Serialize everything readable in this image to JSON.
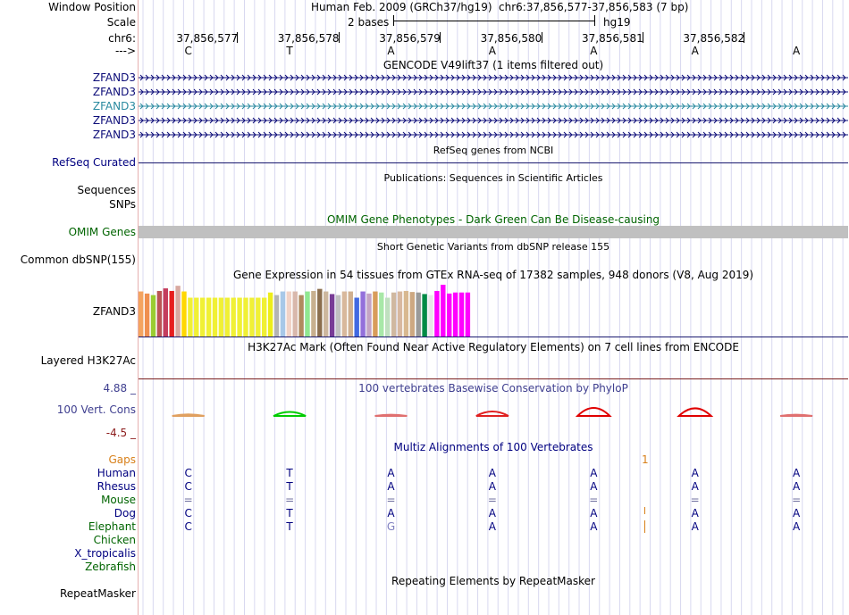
{
  "header": {
    "window_position_label": "Window Position",
    "scale_label": "Scale",
    "chrom_label": "chr6:",
    "strand_label": "--->",
    "assembly_title": "Human Feb. 2009 (GRCh37/hg19)",
    "position": "chr6:37,856,577-37,856,583 (7 bp)",
    "scale_value": "2 bases",
    "scale_db": "hg19",
    "coords": [
      "37,856,577",
      "37,856,578",
      "37,856,579",
      "37,856,580",
      "37,856,581",
      "37,856,582"
    ],
    "bases": [
      "C",
      "T",
      "A",
      "A",
      "A",
      "A",
      "A"
    ]
  },
  "tracks": {
    "gencode": {
      "title": "GENCODE V49lift37 (1 items filtered out)",
      "genes": [
        "ZFAND3",
        "ZFAND3",
        "ZFAND3",
        "ZFAND3",
        "ZFAND3"
      ]
    },
    "refseq": {
      "title": "RefSeq genes from NCBI",
      "label": "RefSeq Curated"
    },
    "publications": {
      "title": "Publications: Sequences in Scientific Articles",
      "label": "Sequences"
    },
    "snps_label": "SNPs",
    "omim": {
      "title": "OMIM Gene Phenotypes - Dark Green Can Be Disease-causing",
      "label": "OMIM Genes"
    },
    "dbsnp": {
      "title": "Short Genetic Variants from dbSNP release 155",
      "label": "Common dbSNP(155)"
    },
    "gtex": {
      "title": "Gene Expression in 54 tissues from GTEx RNA-seq of 17382 samples, 948 donors (V8, Aug 2019)",
      "label": "ZFAND3",
      "bars": [
        0.87,
        0.83,
        0.8,
        0.88,
        0.93,
        0.88,
        0.98,
        0.87,
        0.75,
        0.75,
        0.75,
        0.75,
        0.75,
        0.75,
        0.75,
        0.75,
        0.75,
        0.75,
        0.75,
        0.75,
        0.75,
        0.85,
        0.8,
        0.87,
        0.87,
        0.87,
        0.8,
        0.87,
        0.88,
        0.92,
        0.87,
        0.82,
        0.8,
        0.87,
        0.87,
        0.75,
        0.87,
        0.83,
        0.87,
        0.85,
        0.75,
        0.85,
        0.87,
        0.88,
        0.86,
        0.85,
        0.82,
        0.8,
        0.88,
        1.0,
        0.83,
        0.85,
        0.85,
        0.85
      ],
      "colors": [
        "#f4a460",
        "#ef8f4f",
        "#9acd32",
        "#ba5555",
        "#c43e5e",
        "#e61e1e",
        "#d8a8a0",
        "#ffd700",
        "#f0f035",
        "#f0f035",
        "#f0f035",
        "#f0f035",
        "#f0f035",
        "#f0f035",
        "#f0f035",
        "#f0f035",
        "#f0f035",
        "#f0f035",
        "#f0f035",
        "#f0f035",
        "#f0f035",
        "#eded1a",
        "#b4b4b4",
        "#a8c8e8",
        "#f2d3c7",
        "#d9b8ac",
        "#b08a5e",
        "#90e890",
        "#c8b08f",
        "#8b6e4e",
        "#cdb79e",
        "#783c96",
        "#c0c0c0",
        "#d8b89c",
        "#d0b090",
        "#4169e1",
        "#9370db",
        "#c4a4c4",
        "#d89c5a",
        "#a8e8a8",
        "#c0e0c0",
        "#d0b8a0",
        "#d8b8a0",
        "#d8b890",
        "#cda882",
        "#9a9a9a",
        "#008b45",
        "#e8e8e8",
        "#ff00ff",
        "#ff00ff",
        "#ff00ff",
        "#ff00ff",
        "#ff00ff",
        "#ff00ff"
      ]
    },
    "h3k27ac": {
      "title": "H3K27Ac Mark (Often Found Near Active Regulatory Elements) on 7 cell lines from ENCODE",
      "label": "Layered H3K27Ac"
    },
    "phylop": {
      "title": "100 vertebrates Basewise Conservation by PhyloP",
      "label": "100 Vert. Cons",
      "max_label": "4.88 _",
      "min_label": "-4.5 _",
      "scores": [
        0.2,
        0.5,
        0.15,
        0.55,
        1.0,
        0.95,
        0.15
      ],
      "colors": [
        "#e0a060",
        "#00cc00",
        "#e07070",
        "#e02020",
        "#e00000",
        "#e00000",
        "#e07070"
      ]
    },
    "multiz": {
      "title": "Multiz Alignments of 100 Vertebrates",
      "gaps_label": "Gaps",
      "gap_count": "1",
      "species": [
        {
          "name": "Human",
          "bases": [
            "C",
            "T",
            "A",
            "A",
            "A",
            "A",
            "A"
          ]
        },
        {
          "name": "Rhesus",
          "bases": [
            "C",
            "T",
            "A",
            "A",
            "A",
            "A",
            "A"
          ]
        },
        {
          "name": "Mouse",
          "bases": [
            "=",
            "=",
            "=",
            "=",
            "=",
            "=",
            "="
          ]
        },
        {
          "name": "Dog",
          "bases": [
            "C",
            "T",
            "A",
            "A",
            "A",
            "A",
            "A"
          ]
        },
        {
          "name": "Elephant",
          "bases": [
            "C",
            "T",
            "G",
            "A",
            "A",
            "A",
            "A"
          ]
        },
        {
          "name": "Chicken",
          "bases": []
        },
        {
          "name": "X_tropicalis",
          "bases": []
        },
        {
          "name": "Zebrafish",
          "bases": []
        }
      ]
    },
    "repeatmasker": {
      "title": "Repeating Elements by RepeatMasker",
      "label": "RepeatMasker"
    }
  },
  "colors": {
    "grid": "#d8d8f0",
    "gencode_blue": "#0c0c78",
    "gencode_teal": "#2a8aa0",
    "refseq_line": "#1a1a70",
    "omim_bar": "#c0c0c0",
    "h3k_line": "#7a1f1f",
    "gtex_line": "#1a1a70"
  }
}
